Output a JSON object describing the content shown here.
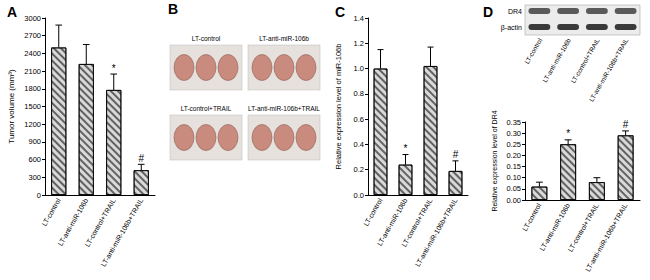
{
  "chart_data": [
    {
      "type": "bar",
      "title": "A",
      "ylabel": "Tumor volume (mm³)",
      "categories": [
        "LT-control",
        "LT-anti-miR-106b",
        "LT-control+TRAIL",
        "LT-anti-miR-106b+TRAIL"
      ],
      "values": [
        2500,
        2220,
        1780,
        420
      ],
      "errors": [
        380,
        330,
        270,
        100
      ],
      "annotations": [
        null,
        null,
        "*",
        "#"
      ],
      "color": "#d9d9d9",
      "ylim": [
        0,
        3000
      ],
      "yticks": [
        0,
        300,
        600,
        900,
        1200,
        1500,
        1800,
        2100,
        2400,
        2700,
        3000
      ],
      "grid": false
    },
    {
      "type": "bar",
      "title": "C",
      "ylabel": "Relative expression level of miR-106b",
      "categories": [
        "LT-control",
        "LT-anti-miR-106b",
        "LT-control+TRAIL",
        "LT-anti-miR-106b+TRAIL"
      ],
      "values": [
        1.0,
        0.24,
        1.02,
        0.19
      ],
      "errors": [
        0.15,
        0.08,
        0.15,
        0.08
      ],
      "annotations": [
        null,
        "*",
        null,
        "#"
      ],
      "color": "#d9d9d9",
      "ylim": [
        0,
        1.4
      ],
      "yticks": [
        {
          "value": 0,
          "label": "0.0"
        },
        0.2,
        0.4,
        0.6,
        0.8,
        {
          "value": 1,
          "label": "1.0"
        },
        1.2,
        1.4
      ],
      "grid": false
    },
    {
      "type": "bar",
      "title": "D",
      "ylabel": "Relative expression level of DR4",
      "categories": [
        "LT-control",
        "LT-anti-miR-106b",
        "LT-control+TRAIL",
        "LT-anti-miR-106b+TRAIL"
      ],
      "values": [
        0.06,
        0.25,
        0.08,
        0.29
      ],
      "errors": [
        0.02,
        0.02,
        0.02,
        0.02
      ],
      "annotations": [
        null,
        "*",
        null,
        "#"
      ],
      "color": "#d9d9d9",
      "ylim": [
        0,
        0.35
      ],
      "yticks": [
        {
          "value": 0,
          "label": "0.00"
        },
        0.05,
        {
          "value": 0.1,
          "label": "0.10"
        },
        0.15,
        {
          "value": 0.2,
          "label": "0.20"
        },
        0.25,
        {
          "value": 0.3,
          "label": "0.30"
        },
        0.35
      ],
      "grid": false
    }
  ],
  "photo_panel": {
    "title": "B",
    "labels": [
      "LT-control",
      "LT-anti-miR-106b",
      "LT-control+TRAIL",
      "LT-anti-miR-106b+TRAIL"
    ]
  },
  "blot": {
    "rows": [
      "DR4",
      "β-actin"
    ],
    "lanes": [
      "LT-control",
      "LT-anti-miR-106b",
      "LT-control+TRAIL",
      "LT-anti-miR-106b+TRAIL"
    ]
  }
}
